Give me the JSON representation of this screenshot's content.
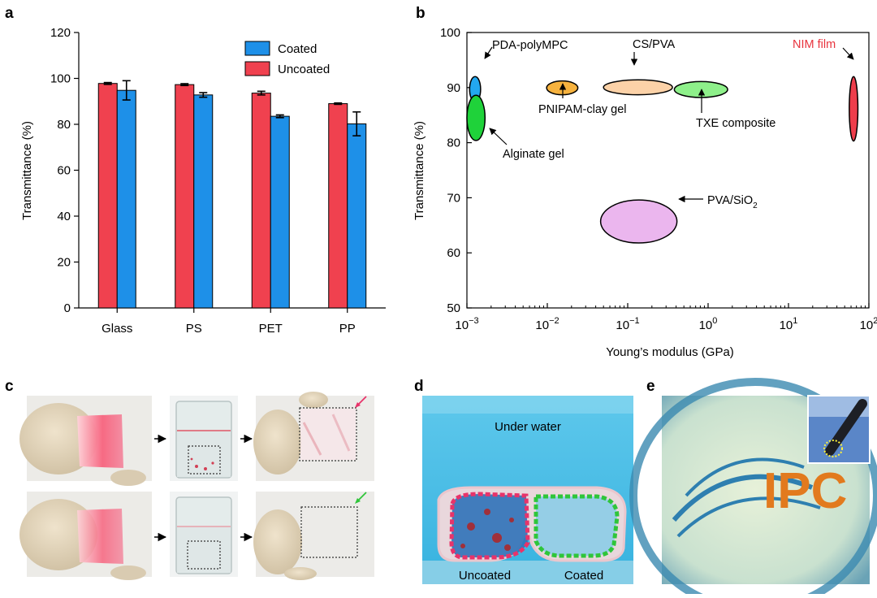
{
  "panels": {
    "a": "a",
    "b": "b",
    "c": "c",
    "d": "d",
    "e": "e"
  },
  "colors": {
    "uncoated": "#f0414f",
    "coated": "#1e90e8",
    "pda": "#23a8f0",
    "alginate": "#1fd23a",
    "pnipam": "#f6b23e",
    "cspva": "#fcd2a8",
    "txe": "#8ef08a",
    "pvasio2": "#ebb6ee",
    "nim": "#ee3d4b",
    "nim_text": "#e8333d",
    "pink_arrow": "#e8336a",
    "green_arrow": "#2fc53a"
  },
  "chart_data": [
    {
      "type": "bar",
      "panel": "a",
      "title": "",
      "xlabel": "",
      "ylabel": "Transmittance (%)",
      "ylim": [
        0,
        120
      ],
      "yticks": [
        "0",
        "20",
        "40",
        "60",
        "80",
        "100",
        "120"
      ],
      "categories": [
        "Glass",
        "PS",
        "PET",
        "PP"
      ],
      "legend": [
        "Coated",
        "Uncoated"
      ],
      "legend_position": "top-right",
      "series": [
        {
          "name": "Uncoated",
          "values": [
            97.8,
            97.3,
            93.6,
            89.0
          ],
          "errors": [
            0.4,
            0.4,
            0.8,
            0.3
          ]
        },
        {
          "name": "Coated",
          "values": [
            94.8,
            92.8,
            83.5,
            80.2
          ],
          "errors": [
            4.2,
            1.0,
            0.6,
            5.2
          ]
        }
      ]
    },
    {
      "type": "scatter",
      "panel": "b",
      "title": "",
      "xlabel": "Young’s modulus (GPa)",
      "ylabel": "Transmittance (%)",
      "xscale": "log",
      "xlim": [
        0.001,
        100
      ],
      "ylim": [
        50,
        100
      ],
      "xticks": [
        {
          "base": "10",
          "exp": "−3"
        },
        {
          "base": "10",
          "exp": "−2"
        },
        {
          "base": "10",
          "exp": "−1"
        },
        {
          "base": "10",
          "exp": "0"
        },
        {
          "base": "10",
          "exp": "1"
        },
        {
          "base": "10",
          "exp": "2"
        }
      ],
      "yticks": [
        "50",
        "60",
        "70",
        "80",
        "90",
        "100"
      ],
      "materials": [
        {
          "name": "PDA-polyMPC",
          "label": "PDA-polyMPC",
          "x_range": [
            0.00108,
            0.00148
          ],
          "y_range": [
            87.4,
            92.0
          ],
          "color_key": "pda"
        },
        {
          "name": "Alginate gel",
          "label": "Alginate gel",
          "x_range": [
            0.001,
            0.00168
          ],
          "y_range": [
            80.4,
            88.6
          ],
          "color_key": "alginate"
        },
        {
          "name": "PNIPAM-clay gel",
          "label": "PNIPAM-clay gel",
          "x_range": [
            0.0098,
            0.024
          ],
          "y_range": [
            88.7,
            91.2
          ],
          "color_key": "pnipam"
        },
        {
          "name": "CS/PVA",
          "label": "CS/PVA",
          "x_range": [
            0.05,
            0.36
          ],
          "y_range": [
            88.7,
            91.4
          ],
          "color_key": "cspva"
        },
        {
          "name": "TXE composite",
          "label": "TXE composite",
          "x_range": [
            0.38,
            1.75
          ],
          "y_range": [
            88.2,
            91.1
          ],
          "color_key": "txe"
        },
        {
          "name": "PVA/SiO2",
          "label_main": "PVA/SiO",
          "label_sub": "2",
          "x_range": [
            0.046,
            0.41
          ],
          "y_range": [
            61.8,
            69.6
          ],
          "color_key": "pvasio2"
        },
        {
          "name": "NIM film",
          "label": "NIM film",
          "x_range": [
            57,
            73
          ],
          "y_range": [
            80.3,
            92.0
          ],
          "color_key": "nim"
        }
      ]
    }
  ],
  "photos": {
    "d": {
      "top_label": "Under water",
      "left_label": "Uncoated",
      "right_label": "Coated"
    },
    "e": {
      "logo_text": "IPC"
    }
  }
}
